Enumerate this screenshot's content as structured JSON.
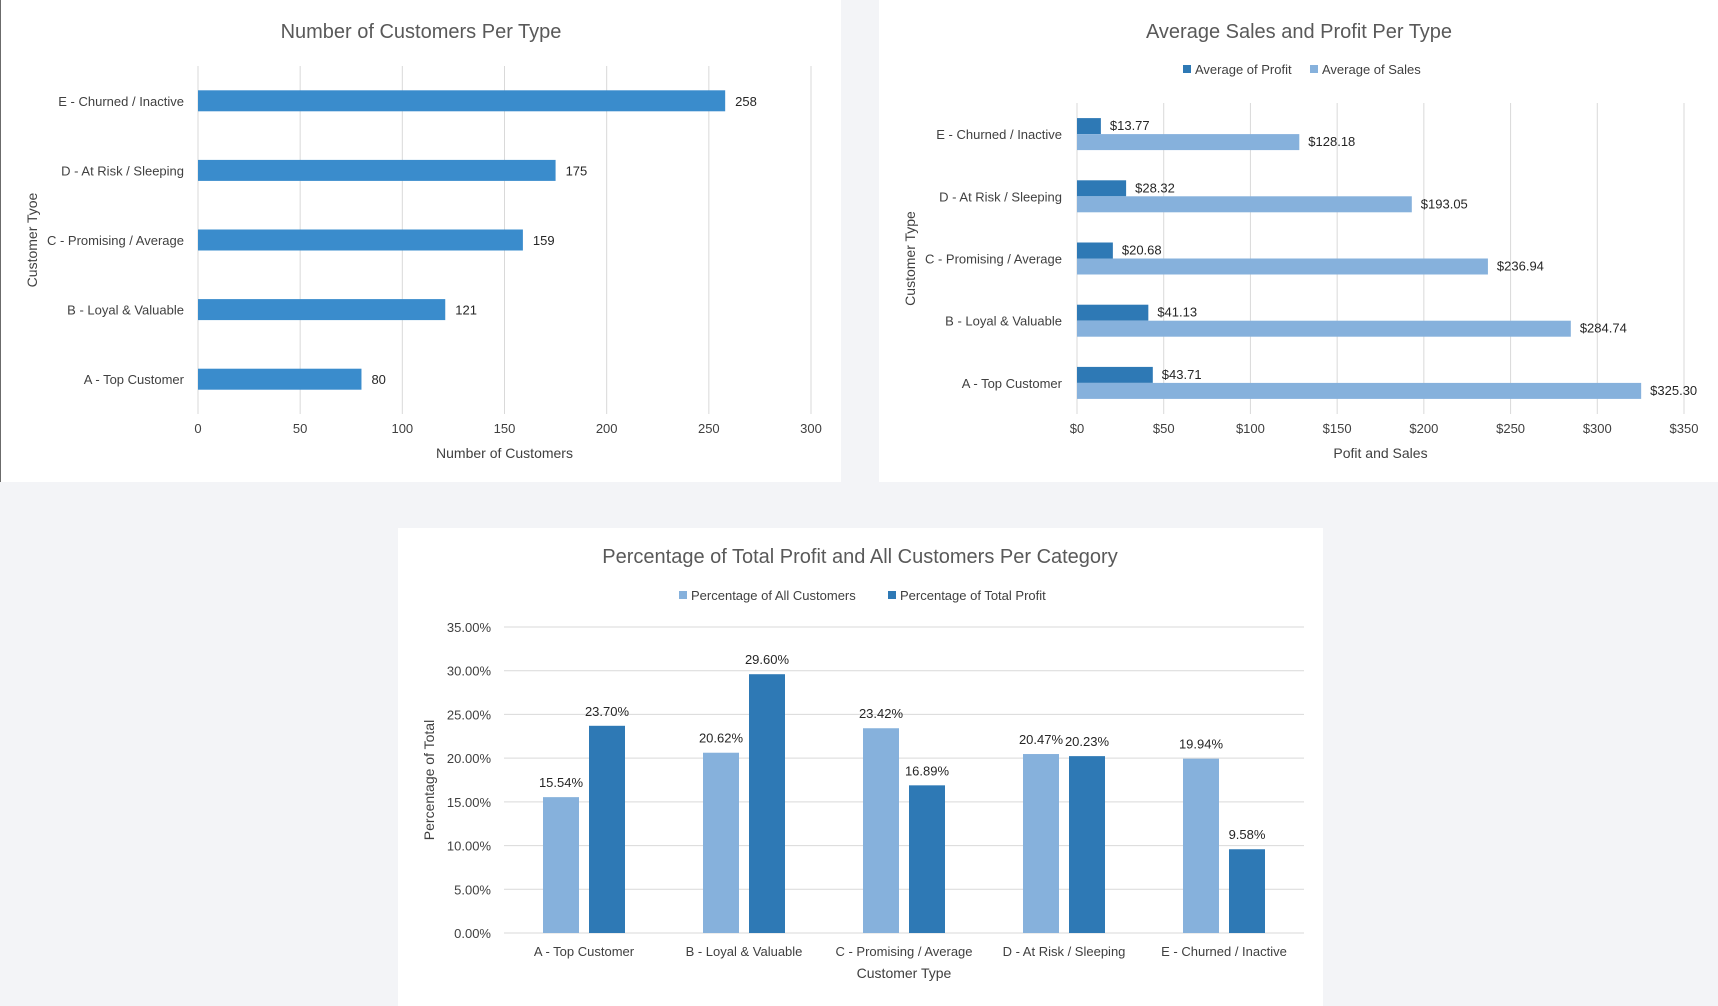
{
  "colors": {
    "bar_primary": "#3a8ccc",
    "profit": "#2e79b5",
    "sales": "#86b1dc",
    "gridline": "#d9d9d9",
    "axis_text": "#404040"
  },
  "chart_data": [
    {
      "type": "bar",
      "orientation": "horizontal",
      "title": "Number of Customers Per Type",
      "xlabel": "Number of Customers",
      "ylabel": "Customer Tyoe",
      "categories": [
        "A - Top Customer",
        "B - Loyal & Valuable",
        "C - Promising / Average",
        "D - At Risk / Sleeping",
        "E - Churned / Inactive"
      ],
      "values": [
        80,
        121,
        159,
        175,
        258
      ],
      "data_labels": [
        "80",
        "121",
        "159",
        "175",
        "258"
      ],
      "xlim": [
        0,
        300
      ],
      "ticks": [
        "0",
        "50",
        "100",
        "150",
        "200",
        "250",
        "300"
      ],
      "grid": true,
      "legend": "none"
    },
    {
      "type": "bar",
      "orientation": "horizontal",
      "title": "Average Sales and Profit Per Type",
      "xlabel": "Pofit and Sales",
      "ylabel": "Customer Type",
      "categories": [
        "A - Top Customer",
        "B - Loyal & Valuable",
        "C - Promising / Average",
        "D - At Risk / Sleeping",
        "E - Churned / Inactive"
      ],
      "series": [
        {
          "name": "Average of Profit",
          "values": [
            43.71,
            41.13,
            20.68,
            28.32,
            13.77
          ],
          "labels": [
            "$43.71",
            "$41.13",
            "$20.68",
            "$28.32",
            "$13.77"
          ]
        },
        {
          "name": "Average of Sales",
          "values": [
            325.3,
            284.74,
            236.94,
            193.05,
            128.18
          ],
          "labels": [
            "$325.30",
            "$284.74",
            "$236.94",
            "$193.05",
            "$128.18"
          ]
        }
      ],
      "xlim": [
        0,
        350
      ],
      "ticks": [
        "$0",
        "$50",
        "$100",
        "$150",
        "$200",
        "$250",
        "$300",
        "$350"
      ],
      "grid": true,
      "legend": "top"
    },
    {
      "type": "bar",
      "orientation": "vertical",
      "title": "Percentage of Total Profit and All Customers Per Category",
      "xlabel": "Customer Type",
      "ylabel": "Percentage of Total",
      "categories": [
        "A - Top Customer",
        "B - Loyal & Valuable",
        "C - Promising / Average",
        "D - At Risk / Sleeping",
        "E - Churned / Inactive"
      ],
      "series": [
        {
          "name": "Percentage of All Customers",
          "values": [
            15.54,
            20.62,
            23.42,
            20.47,
            19.94
          ],
          "labels": [
            "15.54%",
            "20.62%",
            "23.42%",
            "20.47%",
            "19.94%"
          ]
        },
        {
          "name": "Percentage of Total Profit",
          "values": [
            23.7,
            29.6,
            16.89,
            20.23,
            9.58
          ],
          "labels": [
            "23.70%",
            "29.60%",
            "16.89%",
            "20.23%",
            "9.58%"
          ]
        }
      ],
      "ylim": [
        0,
        35
      ],
      "ticks": [
        "0.00%",
        "5.00%",
        "10.00%",
        "15.00%",
        "20.00%",
        "25.00%",
        "30.00%",
        "35.00%"
      ],
      "grid": true,
      "legend": "top"
    }
  ]
}
